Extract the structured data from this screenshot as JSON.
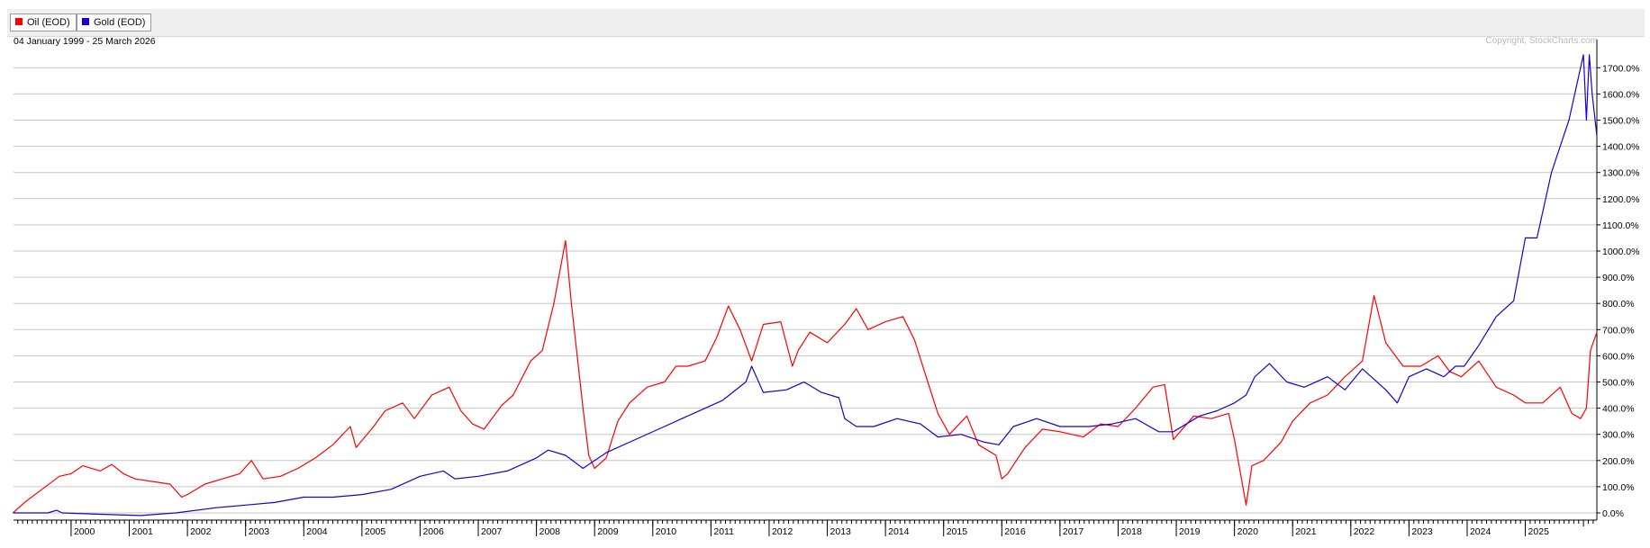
{
  "legend": {
    "items": [
      {
        "label": "Oil (EOD)",
        "color": "#ff0000"
      },
      {
        "label": "Gold (EOD)",
        "color": "#1a00cc"
      }
    ]
  },
  "chart_data": {
    "type": "line",
    "title": "",
    "date_range": "04 January 1999 - 25 March 2026",
    "copyright": "Copyright, StockCharts.com",
    "xlabel": "",
    "ylabel": "",
    "xlim": [
      1999.01,
      2026.23
    ],
    "ylim": [
      -20,
      1800
    ],
    "y_ticks": [
      0,
      100,
      200,
      300,
      400,
      500,
      600,
      700,
      800,
      900,
      1000,
      1100,
      1200,
      1300,
      1400,
      1500,
      1600,
      1700
    ],
    "y_tick_labels": [
      "0.0%",
      "100.0%",
      "200.0%",
      "300.0%",
      "400.0%",
      "500.0%",
      "600.0%",
      "700.0%",
      "800.0%",
      "900.0%",
      "1000.0%",
      "1100.0%",
      "1200.0%",
      "1300.0%",
      "1400.0%",
      "1500.0%",
      "1600.0%",
      "1700.0%"
    ],
    "x_tick_labels": [
      "2000",
      "2001",
      "2002",
      "2003",
      "2004",
      "2005",
      "2006",
      "2007",
      "2008",
      "2009",
      "2010",
      "2011",
      "2012",
      "2013",
      "2014",
      "2015",
      "2016",
      "2017",
      "2018",
      "2019",
      "2020",
      "2021",
      "2022",
      "2023",
      "2024",
      "2025"
    ],
    "grid": true,
    "legend_position": "top-left",
    "series": [
      {
        "name": "Oil (EOD)",
        "color": "#ff0000",
        "x": [
          1999.0,
          1999.2,
          1999.5,
          1999.8,
          2000.0,
          2000.2,
          2000.5,
          2000.7,
          2000.9,
          2001.1,
          2001.4,
          2001.7,
          2001.9,
          2002.0,
          2002.3,
          2002.6,
          2002.9,
          2003.1,
          2003.3,
          2003.6,
          2003.9,
          2004.2,
          2004.5,
          2004.8,
          2004.9,
          2005.2,
          2005.4,
          2005.7,
          2005.9,
          2006.2,
          2006.5,
          2006.7,
          2006.9,
          2007.1,
          2007.4,
          2007.6,
          2007.9,
          2008.1,
          2008.3,
          2008.5,
          2008.6,
          2008.8,
          2008.9,
          2009.0,
          2009.2,
          2009.4,
          2009.6,
          2009.9,
          2010.2,
          2010.4,
          2010.6,
          2010.9,
          2011.1,
          2011.3,
          2011.5,
          2011.7,
          2011.9,
          2012.2,
          2012.4,
          2012.5,
          2012.7,
          2013.0,
          2013.3,
          2013.5,
          2013.7,
          2014.0,
          2014.3,
          2014.5,
          2014.7,
          2014.9,
          2015.1,
          2015.4,
          2015.6,
          2015.9,
          2016.0,
          2016.1,
          2016.4,
          2016.7,
          2017.0,
          2017.4,
          2017.7,
          2018.0,
          2018.3,
          2018.6,
          2018.8,
          2018.95,
          2019.3,
          2019.6,
          2019.9,
          2020.0,
          2020.2,
          2020.3,
          2020.5,
          2020.8,
          2021.0,
          2021.3,
          2021.6,
          2021.9,
          2022.2,
          2022.4,
          2022.6,
          2022.9,
          2023.2,
          2023.5,
          2023.7,
          2023.9,
          2024.2,
          2024.5,
          2024.8,
          2025.0,
          2025.3,
          2025.6,
          2025.8,
          2025.95,
          2026.05,
          2026.12,
          2026.23
        ],
        "values": [
          0,
          40,
          90,
          140,
          150,
          180,
          160,
          185,
          150,
          130,
          120,
          110,
          60,
          70,
          110,
          130,
          150,
          200,
          130,
          140,
          170,
          210,
          260,
          330,
          250,
          330,
          390,
          420,
          360,
          450,
          480,
          390,
          340,
          320,
          410,
          450,
          580,
          620,
          800,
          1040,
          800,
          400,
          220,
          170,
          210,
          350,
          420,
          480,
          500,
          560,
          560,
          580,
          670,
          790,
          700,
          580,
          720,
          730,
          560,
          620,
          690,
          650,
          720,
          780,
          700,
          730,
          750,
          660,
          520,
          380,
          300,
          370,
          260,
          220,
          130,
          150,
          250,
          320,
          310,
          290,
          340,
          330,
          400,
          480,
          490,
          280,
          370,
          360,
          380,
          280,
          30,
          180,
          200,
          270,
          350,
          420,
          450,
          520,
          580,
          830,
          650,
          560,
          560,
          600,
          540,
          520,
          580,
          480,
          450,
          420,
          420,
          480,
          380,
          360,
          400,
          620,
          690
        ]
      },
      {
        "name": "Gold (EOD)",
        "color": "#1a00cc",
        "x": [
          1999.0,
          1999.6,
          1999.75,
          1999.85,
          2000.5,
          2001.2,
          2001.8,
          2002.5,
          2003.0,
          2003.5,
          2004.0,
          2004.5,
          2005.0,
          2005.5,
          2006.0,
          2006.4,
          2006.6,
          2007.0,
          2007.5,
          2008.0,
          2008.2,
          2008.5,
          2008.8,
          2009.2,
          2009.7,
          2010.2,
          2010.7,
          2011.2,
          2011.6,
          2011.7,
          2011.9,
          2012.3,
          2012.6,
          2012.9,
          2013.2,
          2013.3,
          2013.5,
          2013.8,
          2014.2,
          2014.6,
          2014.9,
          2015.3,
          2015.7,
          2015.95,
          2016.2,
          2016.6,
          2017.0,
          2017.5,
          2017.9,
          2018.3,
          2018.7,
          2018.95,
          2019.4,
          2019.7,
          2020.0,
          2020.2,
          2020.35,
          2020.6,
          2020.9,
          2021.2,
          2021.6,
          2021.9,
          2022.2,
          2022.6,
          2022.8,
          2023.0,
          2023.3,
          2023.6,
          2023.8,
          2023.95,
          2024.2,
          2024.5,
          2024.8,
          2025.0,
          2025.2,
          2025.45,
          2025.6,
          2025.75,
          2025.9,
          2026.0,
          2026.05,
          2026.1,
          2026.15,
          2026.23
        ],
        "values": [
          0,
          0,
          10,
          0,
          -5,
          -10,
          0,
          20,
          30,
          40,
          60,
          60,
          70,
          90,
          140,
          160,
          130,
          140,
          160,
          210,
          240,
          220,
          170,
          230,
          280,
          330,
          380,
          430,
          500,
          560,
          460,
          470,
          500,
          460,
          440,
          360,
          330,
          330,
          360,
          340,
          290,
          300,
          270,
          260,
          330,
          360,
          330,
          330,
          340,
          360,
          310,
          310,
          370,
          390,
          420,
          450,
          520,
          570,
          500,
          480,
          520,
          470,
          550,
          470,
          420,
          520,
          550,
          520,
          560,
          560,
          640,
          750,
          810,
          1050,
          1050,
          1300,
          1400,
          1500,
          1650,
          1750,
          1500,
          1750,
          1600,
          1440
        ]
      }
    ]
  }
}
